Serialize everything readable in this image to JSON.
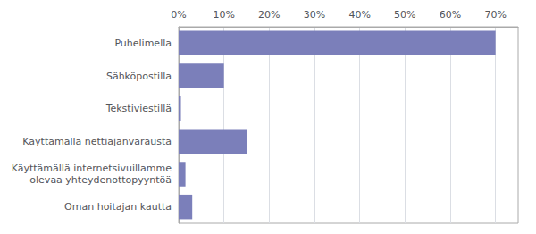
{
  "chart_data": {
    "type": "bar",
    "orientation": "horizontal",
    "categories": [
      "Oman hoitajan kautta",
      "Käyttämällä internetsivuillamme\nolevaa yhteydenottopyyntöä",
      "Käyttämällä nettiajanvarausta",
      "Tekstiviestillä",
      "Sähköpostilla",
      "Puhelimella"
    ],
    "values": [
      3,
      1.5,
      15,
      0.5,
      10,
      70
    ],
    "color": "#7b7fba",
    "xlim": [
      0,
      75
    ],
    "xticks": [
      {
        "value": 0,
        "label": "0%"
      },
      {
        "value": 10,
        "label": "10%"
      },
      {
        "value": 20,
        "label": "20%"
      },
      {
        "value": 30,
        "label": "30%"
      },
      {
        "value": 40,
        "label": "40%"
      },
      {
        "value": 50,
        "label": "50%"
      },
      {
        "value": 60,
        "label": "60%"
      },
      {
        "value": 70,
        "label": "70%"
      }
    ],
    "grid": true
  }
}
